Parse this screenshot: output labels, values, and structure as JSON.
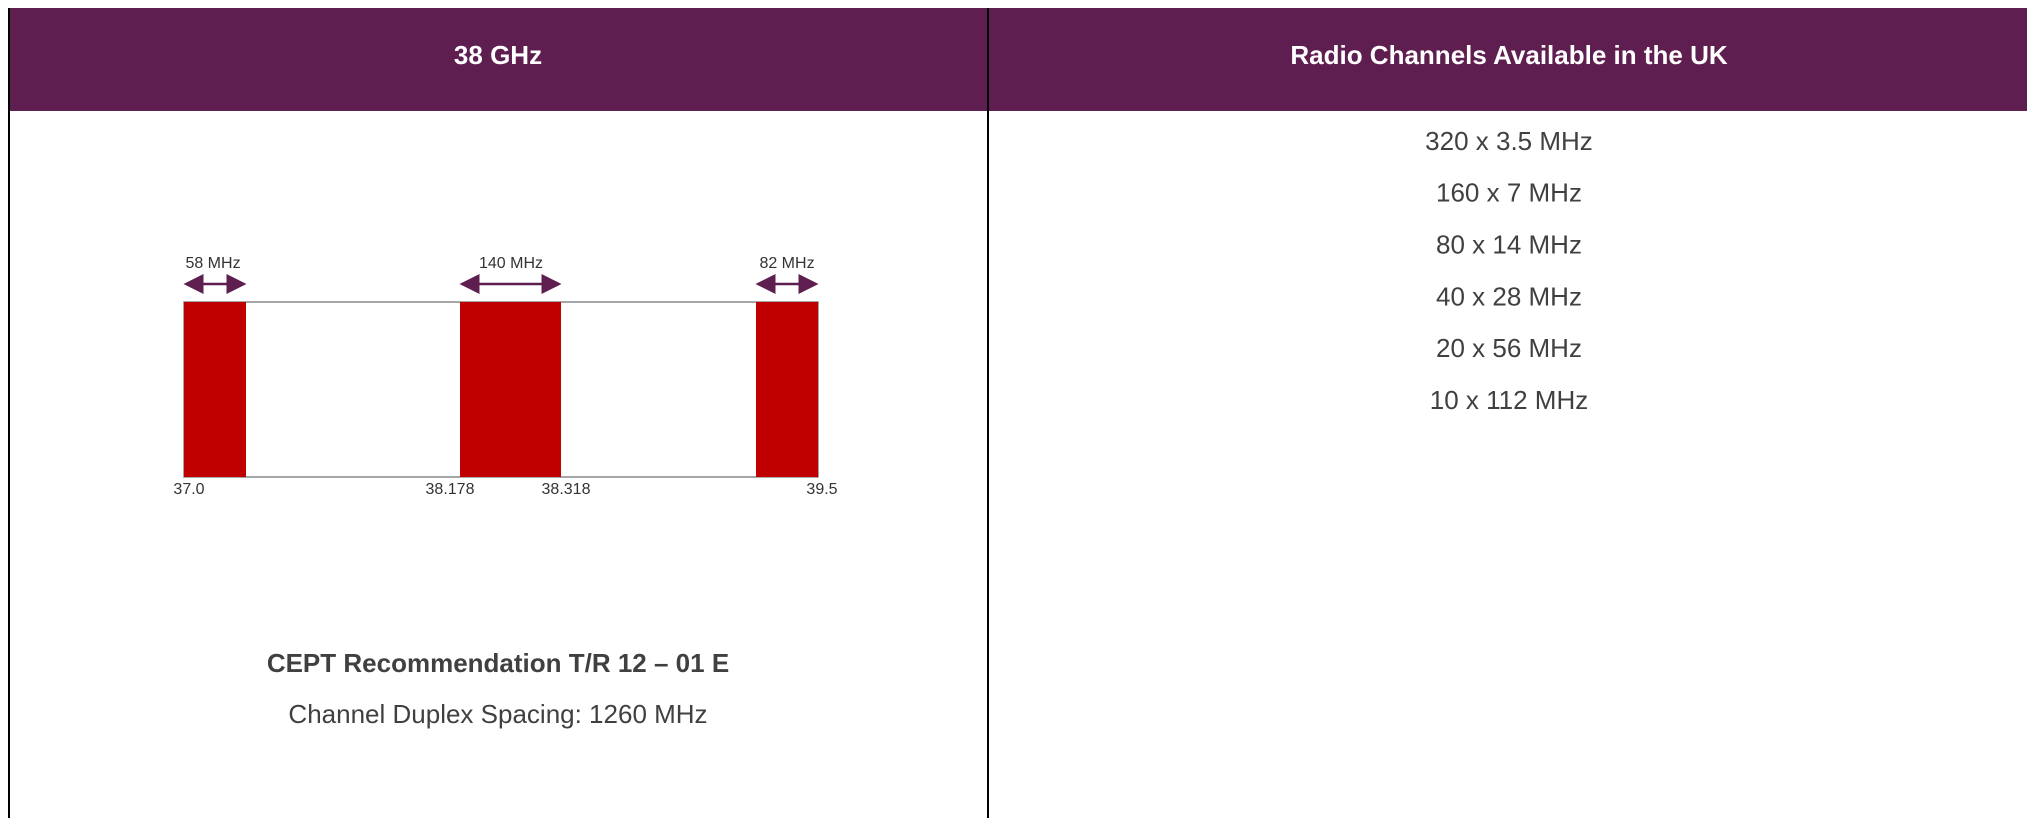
{
  "table": {
    "headers": [
      "38 GHz",
      "Radio Channels Available in the UK"
    ],
    "diagram": {
      "widths": [
        "58 MHz",
        "140 MHz",
        "82 MHz"
      ],
      "frequencies": [
        "37.0",
        "38.178",
        "38.318",
        "39.5"
      ]
    },
    "recommendation": "CEPT Recommendation T/R 12 – 01 E",
    "duplex": "Channel Duplex Spacing: 1260 MHz",
    "channels": [
      "320 x 3.5 MHz",
      "160 x 7 MHz",
      "80 x 14 MHz",
      "40 x 28 MHz",
      "20 x 56 MHz",
      "10 x 112 MHz"
    ]
  }
}
